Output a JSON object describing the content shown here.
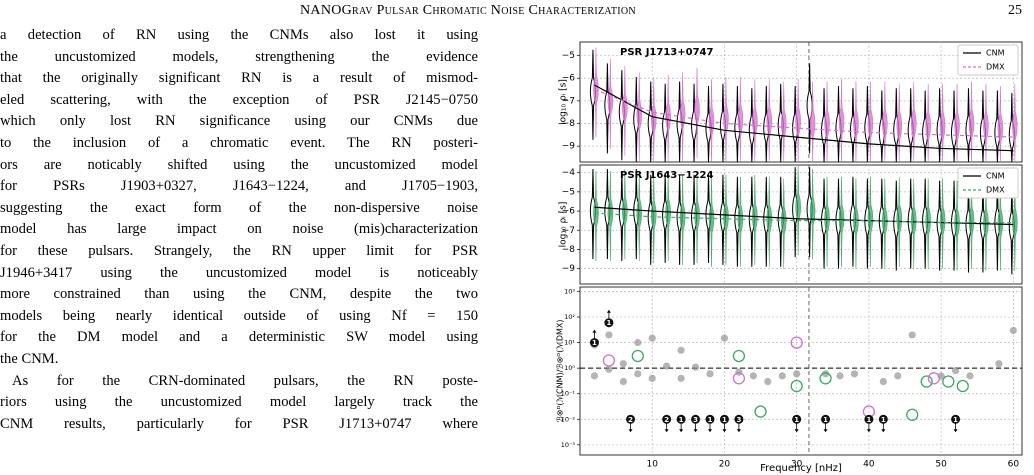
{
  "header": {
    "title": "NANOGrav Pulsar Chromatic Noise Characterization",
    "page": "25"
  },
  "body": {
    "lines": [
      "a detection of RN using the CNMs also lost it using",
      "the uncustomized models, strengthening the evidence",
      "that the originally significant RN is a result of mismod-",
      "eled scattering, with the exception of PSR J2145−0750",
      "which only lost RN significance using our CNMs due",
      "to the inclusion of a chromatic event. The RN posteri-",
      "ors are noticably shifted using the uncustomized model",
      "for PSRs J1903+0327, J1643−1224, and J1705−1903,",
      "suggesting the exact form of the non-dispersive noise",
      "model has large impact on noise (mis)characterization",
      "for these pulsars. Strangely, the RN upper limit for PSR",
      "J1946+3417 using the uncustomized model is noticeably",
      "more constrained than using the CNM, despite the two",
      "models being nearly identical outside of using Nf = 150",
      "for the DM model and a deterministic SW model using",
      "the CNM.",
      "As for the CRN-dominated pulsars, the RN poste-",
      "riors using the uncustomized model largely track the",
      "CNM results, particularly for PSR J1713+0747 where"
    ]
  },
  "figure": {
    "xlabel": "Frequency [nHz]",
    "xlim": [
      0,
      61.2
    ],
    "xticks": [
      10,
      20,
      30,
      40,
      50,
      60
    ],
    "x": [
      2,
      4,
      6,
      8,
      10,
      12,
      14,
      16,
      18,
      20,
      22,
      24,
      26,
      28,
      30,
      32,
      34,
      36,
      38,
      40,
      42,
      44,
      46,
      48,
      50,
      52,
      54,
      56,
      58,
      60
    ],
    "vline": 31.7,
    "panels": [
      {
        "title": "PSR J1713+0747",
        "ylabel": "log₁₀ ρᵢ [s]",
        "ylim": [
          -9.7,
          -4.4
        ],
        "yticks": [
          {
            "value": -5,
            "label": "−5"
          },
          {
            "value": -6,
            "label": "−6"
          },
          {
            "value": -7,
            "label": "−7"
          },
          {
            "value": -8,
            "label": "−8"
          },
          {
            "value": -9,
            "label": "−9"
          }
        ],
        "legend": [
          {
            "name": "CNM",
            "color": "#000000",
            "dashed": false
          },
          {
            "name": "DMX",
            "color": "#d36fd0",
            "dashed": true
          }
        ],
        "series": [
          {
            "style": "violin-outline",
            "color": "#000000",
            "values": [
              -6.6,
              -7.2,
              -7.5,
              -7.8,
              -8.0,
              -8.1,
              -8.0,
              -8.1,
              -8.2,
              -8.1,
              -8.2,
              -8.3,
              -8.2,
              -8.1,
              -8.2,
              -7.2,
              -8.3,
              -8.2,
              -8.3,
              -8.2,
              -8.4,
              -8.3,
              -8.3,
              -8.4,
              -8.3,
              -8.4,
              -8.3,
              -8.4,
              -8.4,
              -8.5
            ]
          },
          {
            "style": "violin-fill",
            "color": "#d36fd0",
            "values": [
              -6.5,
              -7.0,
              -7.3,
              -7.6,
              -7.8,
              -7.7,
              -7.6,
              -7.4,
              -7.9,
              -7.8,
              -7.8,
              -7.9,
              -7.9,
              -8.0,
              -7.9,
              -8.0,
              -8.0,
              -7.9,
              -8.0,
              -8.0,
              -8.0,
              -8.1,
              -8.0,
              -8.1,
              -8.1,
              -8.1,
              -8.0,
              -8.1,
              -8.2,
              -8.1
            ]
          },
          {
            "style": "line",
            "color": "#000000",
            "x": [
              2,
              10,
              20,
              30,
              40,
              50,
              60
            ],
            "values": [
              -6.3,
              -7.7,
              -8.3,
              -8.6,
              -8.9,
              -9.1,
              -9.2
            ]
          },
          {
            "style": "dashed",
            "color": "#d36fd0",
            "x": [
              2,
              10,
              20,
              30,
              40,
              50,
              60
            ],
            "values": [
              -6.5,
              -7.5,
              -8.0,
              -8.2,
              -8.4,
              -8.5,
              -8.6
            ]
          }
        ]
      },
      {
        "title": "PSR J1643−1224",
        "ylabel": "log₁₀ ρᵢ [s]",
        "ylim": [
          -9.8,
          -3.6
        ],
        "yticks": [
          {
            "value": -4,
            "label": "−4"
          },
          {
            "value": -5,
            "label": "−5"
          },
          {
            "value": -6,
            "label": "−6"
          },
          {
            "value": -7,
            "label": "−7"
          },
          {
            "value": -8,
            "label": "−8"
          },
          {
            "value": -9,
            "label": "−9"
          }
        ],
        "legend": [
          {
            "name": "CNM",
            "color": "#000000",
            "dashed": false
          },
          {
            "name": "DMX",
            "color": "#3aa865",
            "dashed": true
          }
        ],
        "series": [
          {
            "style": "violin-outline",
            "color": "#000000",
            "values": [
              -6.0,
              -6.0,
              -6.1,
              -6.0,
              -6.3,
              -6.2,
              -6.3,
              -6.3,
              -6.2,
              -6.3,
              -6.4,
              -6.4,
              -6.4,
              -6.4,
              -5.9,
              -5.9,
              -6.5,
              -6.5,
              -6.4,
              -6.5,
              -6.5,
              -6.6,
              -6.5,
              -6.5,
              -6.6,
              -6.6,
              -6.7,
              -6.7,
              -6.6,
              -6.8
            ]
          },
          {
            "style": "violin-fill",
            "color": "#3aa865",
            "values": [
              -6.1,
              -6.1,
              -6.0,
              -6.1,
              -6.2,
              -6.1,
              -6.3,
              -6.2,
              -6.4,
              -6.3,
              -6.4,
              -6.3,
              -6.4,
              -6.5,
              -5.8,
              -6.0,
              -6.4,
              -6.4,
              -6.5,
              -6.4,
              -6.5,
              -6.4,
              -6.5,
              -6.5,
              -6.5,
              -6.6,
              -6.5,
              -6.6,
              -6.6,
              -6.6
            ]
          },
          {
            "style": "line",
            "color": "#000000",
            "x": [
              2,
              10,
              20,
              30,
              40,
              50,
              60
            ],
            "values": [
              -5.8,
              -6.0,
              -6.2,
              -6.4,
              -6.5,
              -6.6,
              -6.7
            ]
          },
          {
            "style": "dashed",
            "color": "#3aa865",
            "x": [
              2,
              10,
              20,
              30,
              40,
              50,
              60
            ],
            "values": [
              -6.1,
              -6.3,
              -6.4,
              -6.5,
              -6.5,
              -6.6,
              -6.6
            ]
          }
        ]
      },
      {
        "ylabel": "ℬ⊗ᴰ(ℳCNM)/ℬ⊗ᴰ(ℳDMX)",
        "log": true,
        "ylim": [
          0.0004,
          1500
        ],
        "hline": 1,
        "yticks": [
          {
            "value": 1000,
            "label": "10³"
          },
          {
            "value": 100,
            "label": "10²"
          },
          {
            "value": 10,
            "label": "10¹"
          },
          {
            "value": 1,
            "label": "10⁰"
          },
          {
            "value": 0.1,
            "label": "10⁻¹"
          },
          {
            "value": 0.01,
            "label": "10⁻²"
          },
          {
            "value": 0.001,
            "label": "10⁻³"
          }
        ],
        "series": [
          {
            "style": "dots",
            "color": "#8c8c8c",
            "x": [
              2,
              2,
              4,
              4,
              6,
              6,
              8,
              8,
              10,
              10,
              12,
              14,
              14,
              16,
              18,
              20,
              22,
              24,
              26,
              28,
              30,
              34,
              36,
              38,
              42,
              44,
              46,
              50,
              52,
              54,
              58,
              60
            ],
            "values": [
              8,
              0.5,
              20,
              0.9,
              1.5,
              0.3,
              10,
              0.6,
              15,
              0.4,
              1.2,
              5,
              0.4,
              1.1,
              0.6,
              15,
              0.7,
              0.5,
              0.3,
              0.5,
              0.6,
              0.6,
              0.5,
              0.6,
              0.3,
              0.5,
              20,
              0.5,
              0.8,
              0.5,
              1.5,
              30
            ]
          },
          {
            "style": "rings",
            "color": "#3aa865",
            "x": [
              8,
              22,
              25,
              30,
              34,
              46,
              48,
              51,
              53
            ],
            "values": [
              3,
              3,
              0.02,
              0.2,
              0.4,
              0.015,
              0.3,
              0.3,
              0.2
            ]
          },
          {
            "style": "rings",
            "color": "#d36fd0",
            "x": [
              4,
              22,
              30,
              40,
              49
            ],
            "values": [
              2,
              0.4,
              10,
              0.02,
              0.4
            ]
          },
          {
            "style": "up",
            "color": "#000000",
            "x": [
              2,
              4
            ],
            "values": [
              10,
              60
            ],
            "labels": [
              "1",
              "1"
            ]
          },
          {
            "style": "down",
            "color": "#000000",
            "x": [
              7,
              12,
              14,
              16,
              18,
              20,
              22,
              30,
              34,
              40,
              42,
              52
            ],
            "values": [
              0.01,
              0.01,
              0.01,
              0.01,
              0.01,
              0.01,
              0.01,
              0.01,
              0.01,
              0.01,
              0.01,
              0.01
            ],
            "labels": [
              "2",
              "2",
              "1",
              "3",
              "1",
              "1",
              "3",
              "1",
              "1",
              "1",
              "1",
              "1"
            ]
          }
        ]
      }
    ]
  }
}
